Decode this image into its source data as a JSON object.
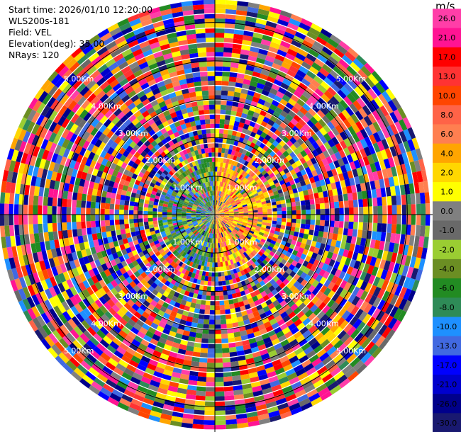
{
  "info": {
    "start_time": "Start time: 2026/01/10 12:20:00",
    "site": "WLS200s-181",
    "field": "Field: VEL",
    "elevation": "Elevation(deg): 35.00",
    "nrays": "NRays: 120"
  },
  "chart_data": {
    "type": "heatmap",
    "projection": "polar-ppi",
    "title": "",
    "n_rays": 120,
    "n_gates": 45,
    "range_rings_km": [
      "1.00Km",
      "2.00Km",
      "3.00Km",
      "4.00Km",
      "5.00Km"
    ],
    "max_range_km": 5.6,
    "near_field_pattern": {
      "west_half": "negative (blue/green)",
      "east_half": "positive (yellow/orange)"
    },
    "colorbar": {
      "unit": "m/s",
      "ticks": [
        "26.0",
        "21.0",
        "17.0",
        "13.0",
        "10.0",
        "8.0",
        "6.0",
        "4.0",
        "2.0",
        "1.0",
        "0.0",
        "-1.0",
        "-2.0",
        "-4.0",
        "-6.0",
        "-8.0",
        "-10.0",
        "-13.0",
        "-17.0",
        "-21.0",
        "-26.0",
        "-30.0"
      ],
      "colors": [
        "#ff3ea8",
        "#ff1493",
        "#ff0000",
        "#ff3333",
        "#ff4500",
        "#ff6347",
        "#ff7f50",
        "#ffa500",
        "#ffd700",
        "#ffff00",
        "#808080",
        "#696969",
        "#9acd32",
        "#6b8e23",
        "#228b22",
        "#2e8b57",
        "#1e90ff",
        "#4169e1",
        "#0000ff",
        "#0000cd",
        "#00008b",
        "#191970"
      ]
    }
  }
}
